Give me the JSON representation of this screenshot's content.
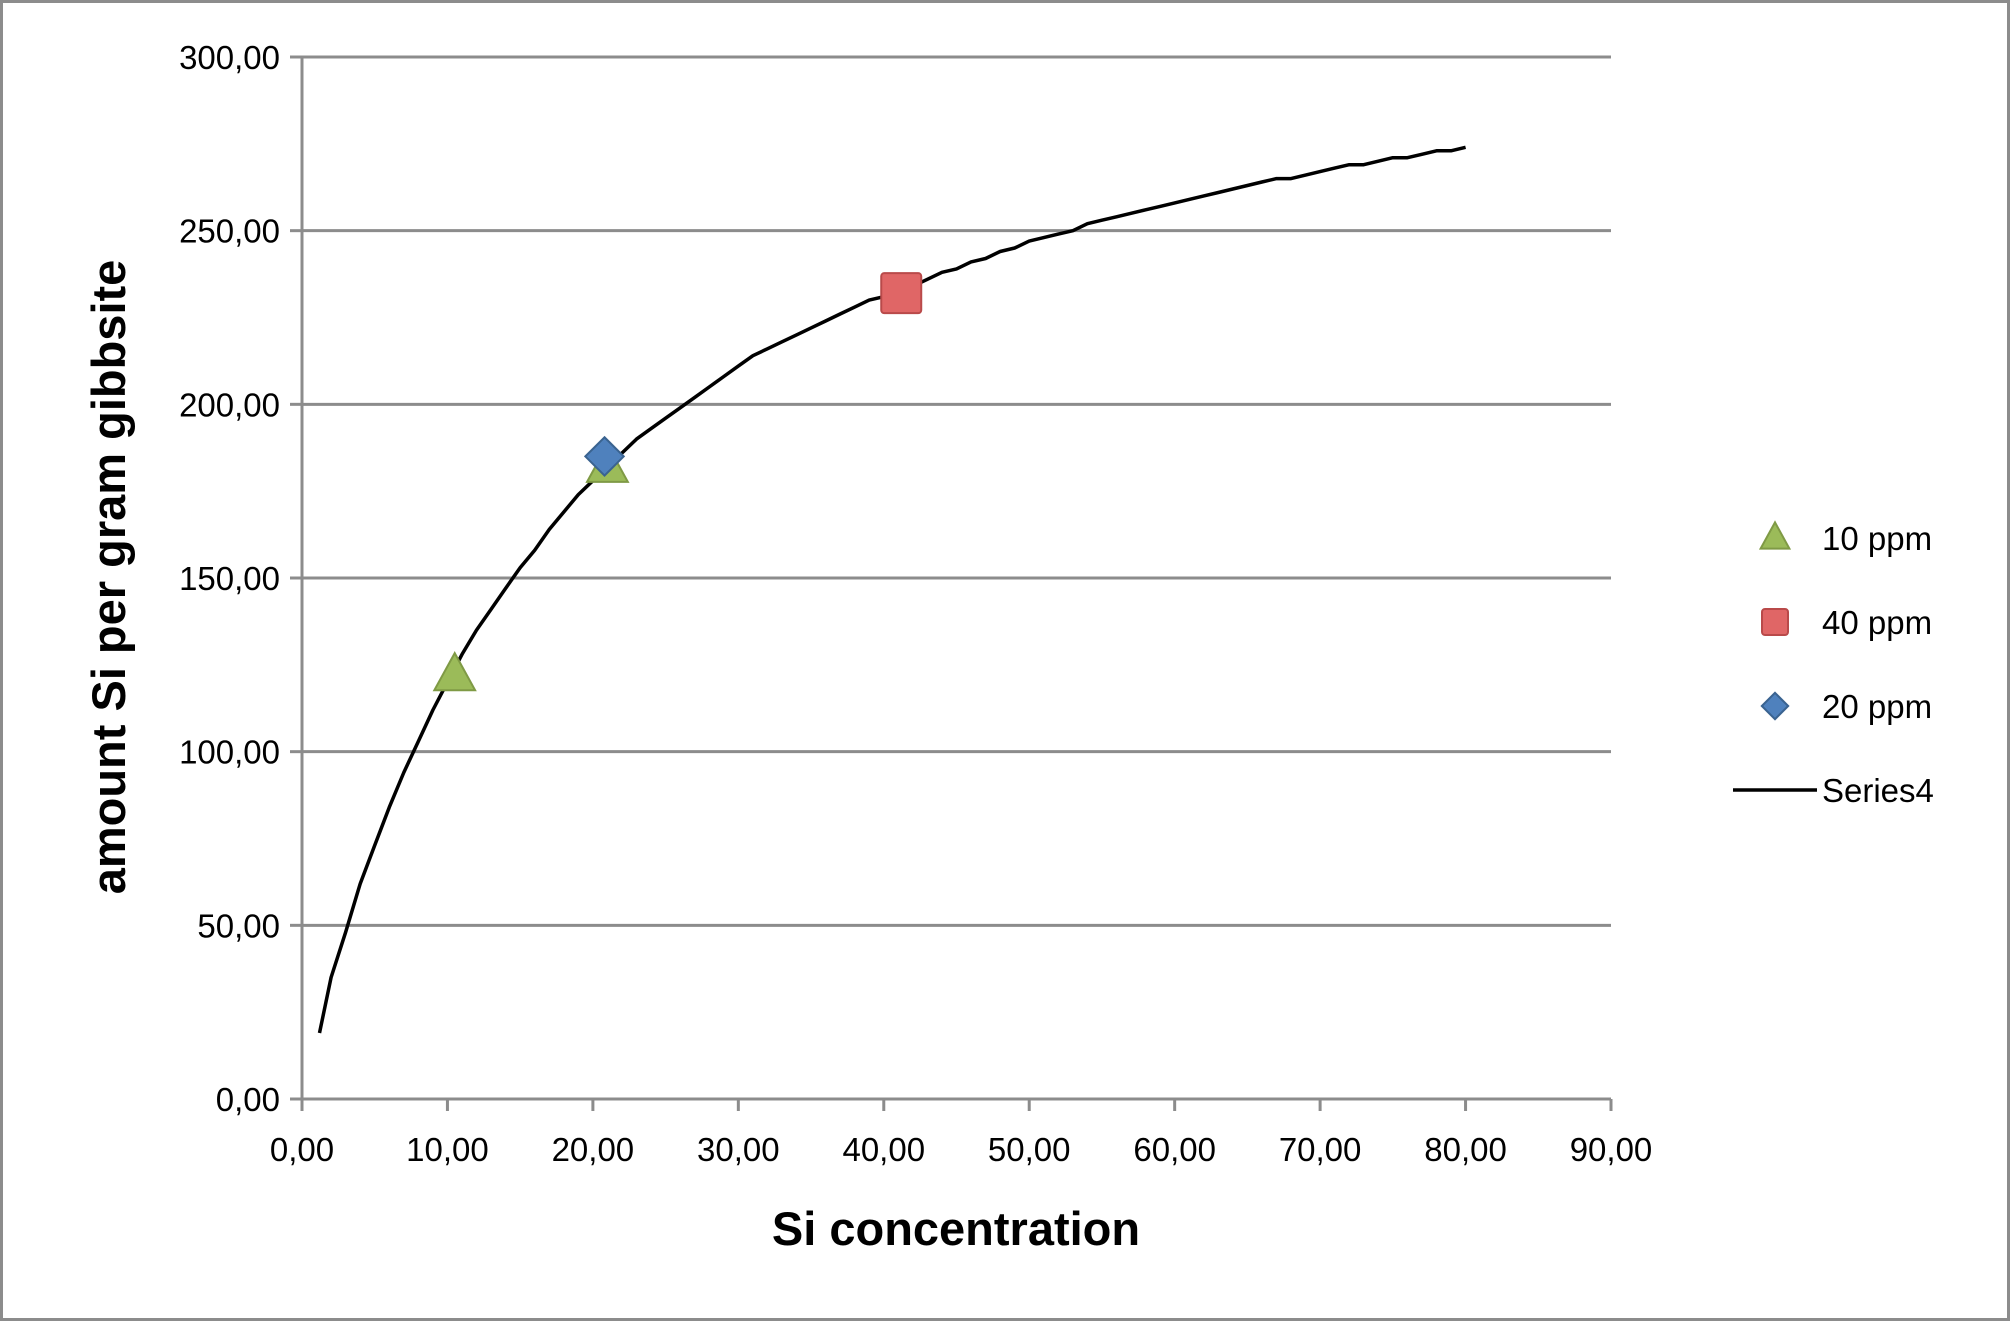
{
  "chart_data": {
    "type": "scatter",
    "xlabel": "Si concentration",
    "ylabel": "amount Si per gram gibbsite",
    "xlim": [
      0,
      90
    ],
    "ylim": [
      0,
      300
    ],
    "x_ticks": [
      "0,00",
      "10,00",
      "20,00",
      "30,00",
      "40,00",
      "50,00",
      "60,00",
      "70,00",
      "80,00",
      "90,00"
    ],
    "y_ticks": [
      "0,00",
      "50,00",
      "100,00",
      "150,00",
      "200,00",
      "250,00",
      "300,00"
    ],
    "grid": "horizontal",
    "legend_position": "right",
    "series": [
      {
        "name": "10 ppm",
        "marker": "triangle",
        "color": "#9bbb59",
        "points": [
          {
            "x": 10.5,
            "y": 122
          },
          {
            "x": 21.0,
            "y": 182
          }
        ]
      },
      {
        "name": "40 ppm",
        "marker": "square",
        "color": "#e06666",
        "points": [
          {
            "x": 41.2,
            "y": 232
          }
        ]
      },
      {
        "name": "20 ppm",
        "marker": "diamond",
        "color": "#4f81bd",
        "points": [
          {
            "x": 20.8,
            "y": 185
          }
        ]
      },
      {
        "name": "Series4",
        "marker": "line",
        "color": "#000000",
        "points": [
          {
            "x": 1.2,
            "y": 19
          },
          {
            "x": 2,
            "y": 35
          },
          {
            "x": 3,
            "y": 48
          },
          {
            "x": 4,
            "y": 62
          },
          {
            "x": 5,
            "y": 73
          },
          {
            "x": 6,
            "y": 84
          },
          {
            "x": 7,
            "y": 94
          },
          {
            "x": 8,
            "y": 103
          },
          {
            "x": 9,
            "y": 112
          },
          {
            "x": 10,
            "y": 120
          },
          {
            "x": 11,
            "y": 128
          },
          {
            "x": 12,
            "y": 135
          },
          {
            "x": 13,
            "y": 141
          },
          {
            "x": 14,
            "y": 147
          },
          {
            "x": 15,
            "y": 153
          },
          {
            "x": 16,
            "y": 158
          },
          {
            "x": 17,
            "y": 164
          },
          {
            "x": 18,
            "y": 169
          },
          {
            "x": 19,
            "y": 174
          },
          {
            "x": 20,
            "y": 178
          },
          {
            "x": 21,
            "y": 182
          },
          {
            "x": 22,
            "y": 186
          },
          {
            "x": 23,
            "y": 190
          },
          {
            "x": 24,
            "y": 193
          },
          {
            "x": 25,
            "y": 196
          },
          {
            "x": 26,
            "y": 199
          },
          {
            "x": 27,
            "y": 202
          },
          {
            "x": 28,
            "y": 205
          },
          {
            "x": 29,
            "y": 208
          },
          {
            "x": 30,
            "y": 211
          },
          {
            "x": 31,
            "y": 214
          },
          {
            "x": 32,
            "y": 216
          },
          {
            "x": 33,
            "y": 218
          },
          {
            "x": 34,
            "y": 220
          },
          {
            "x": 35,
            "y": 222
          },
          {
            "x": 36,
            "y": 224
          },
          {
            "x": 37,
            "y": 226
          },
          {
            "x": 38,
            "y": 228
          },
          {
            "x": 39,
            "y": 230
          },
          {
            "x": 40,
            "y": 231
          },
          {
            "x": 41,
            "y": 233
          },
          {
            "x": 42,
            "y": 234
          },
          {
            "x": 43,
            "y": 236
          },
          {
            "x": 44,
            "y": 238
          },
          {
            "x": 45,
            "y": 239
          },
          {
            "x": 46,
            "y": 241
          },
          {
            "x": 47,
            "y": 242
          },
          {
            "x": 48,
            "y": 244
          },
          {
            "x": 49,
            "y": 245
          },
          {
            "x": 50,
            "y": 247
          },
          {
            "x": 51,
            "y": 248
          },
          {
            "x": 52,
            "y": 249
          },
          {
            "x": 53,
            "y": 250
          },
          {
            "x": 54,
            "y": 252
          },
          {
            "x": 55,
            "y": 253
          },
          {
            "x": 56,
            "y": 254
          },
          {
            "x": 57,
            "y": 255
          },
          {
            "x": 58,
            "y": 256
          },
          {
            "x": 59,
            "y": 257
          },
          {
            "x": 60,
            "y": 258
          },
          {
            "x": 61,
            "y": 259
          },
          {
            "x": 62,
            "y": 260
          },
          {
            "x": 63,
            "y": 261
          },
          {
            "x": 64,
            "y": 262
          },
          {
            "x": 65,
            "y": 263
          },
          {
            "x": 66,
            "y": 264
          },
          {
            "x": 67,
            "y": 265
          },
          {
            "x": 68,
            "y": 265
          },
          {
            "x": 69,
            "y": 266
          },
          {
            "x": 70,
            "y": 267
          },
          {
            "x": 71,
            "y": 268
          },
          {
            "x": 72,
            "y": 269
          },
          {
            "x": 73,
            "y": 269
          },
          {
            "x": 74,
            "y": 270
          },
          {
            "x": 75,
            "y": 271
          },
          {
            "x": 76,
            "y": 271
          },
          {
            "x": 77,
            "y": 272
          },
          {
            "x": 78,
            "y": 273
          },
          {
            "x": 79,
            "y": 273
          },
          {
            "x": 80,
            "y": 274
          }
        ]
      }
    ]
  }
}
